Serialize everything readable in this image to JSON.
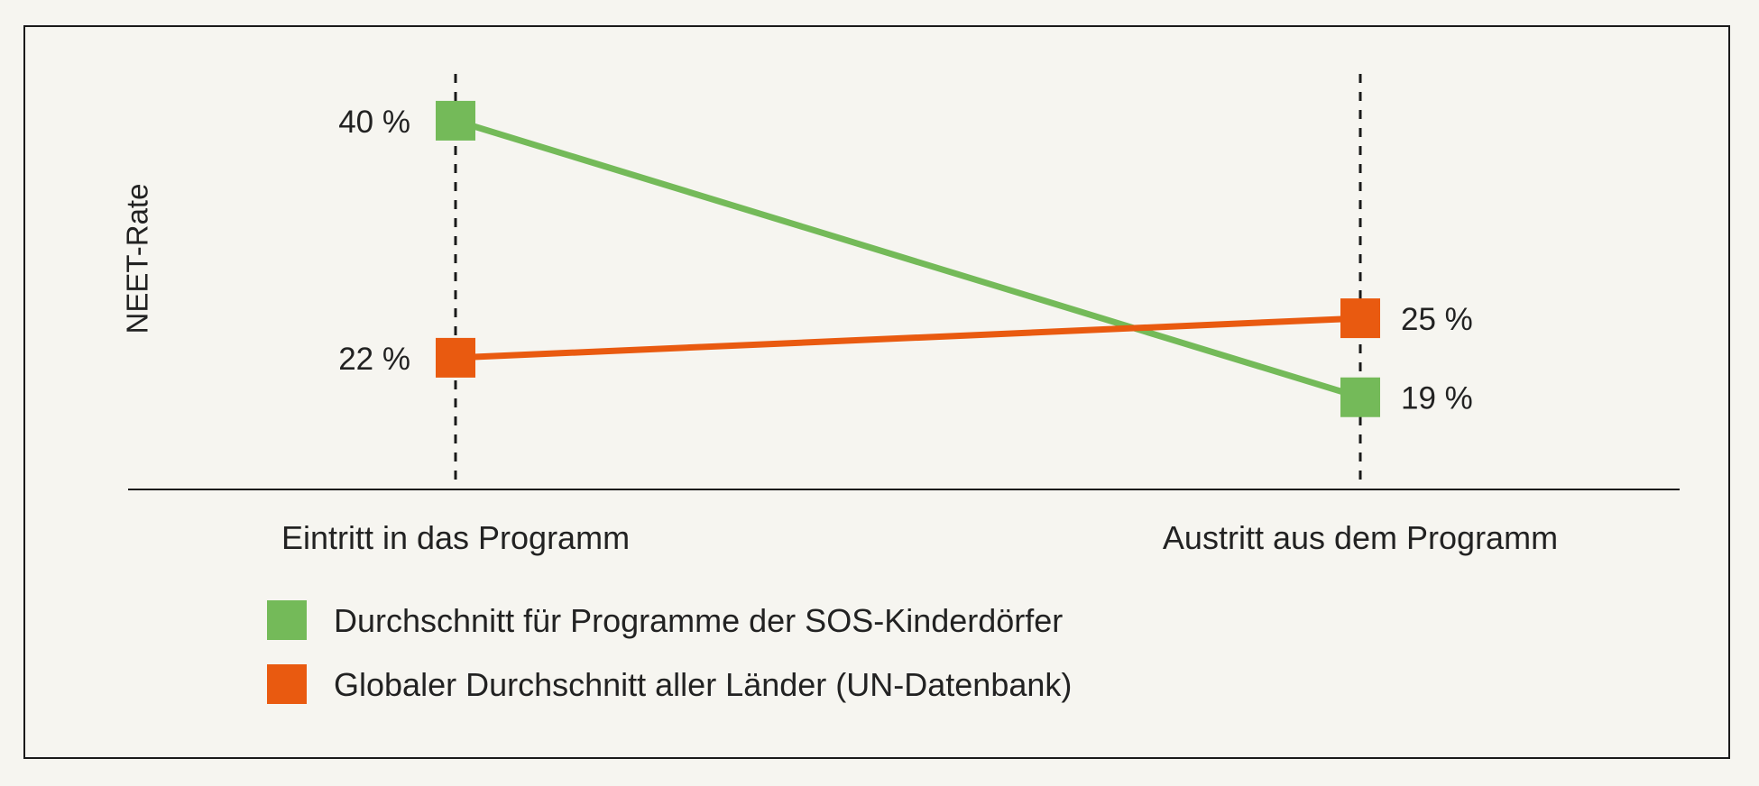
{
  "chart_data": {
    "type": "line",
    "title": "",
    "xlabel": "",
    "ylabel": "NEET-Rate",
    "categories": [
      "Eintritt in das Programm",
      "Austritt aus dem Programm"
    ],
    "series": [
      {
        "name": "Durchschnitt für Programme der SOS-Kinderdörfer",
        "values": [
          40,
          19
        ],
        "labels": [
          "40 %",
          "19 %"
        ],
        "color": "#74ba59"
      },
      {
        "name": "Globaler Durchschnitt aller Länder (UN-Datenbank)",
        "values": [
          22,
          25
        ],
        "labels": [
          "22 %",
          "25 %"
        ],
        "color": "#e95a10"
      }
    ],
    "ylim": [
      12,
      41.5
    ],
    "grid": false,
    "legend_position": "bottom-left",
    "marker": "square",
    "category_guides": "dashed-vertical"
  }
}
